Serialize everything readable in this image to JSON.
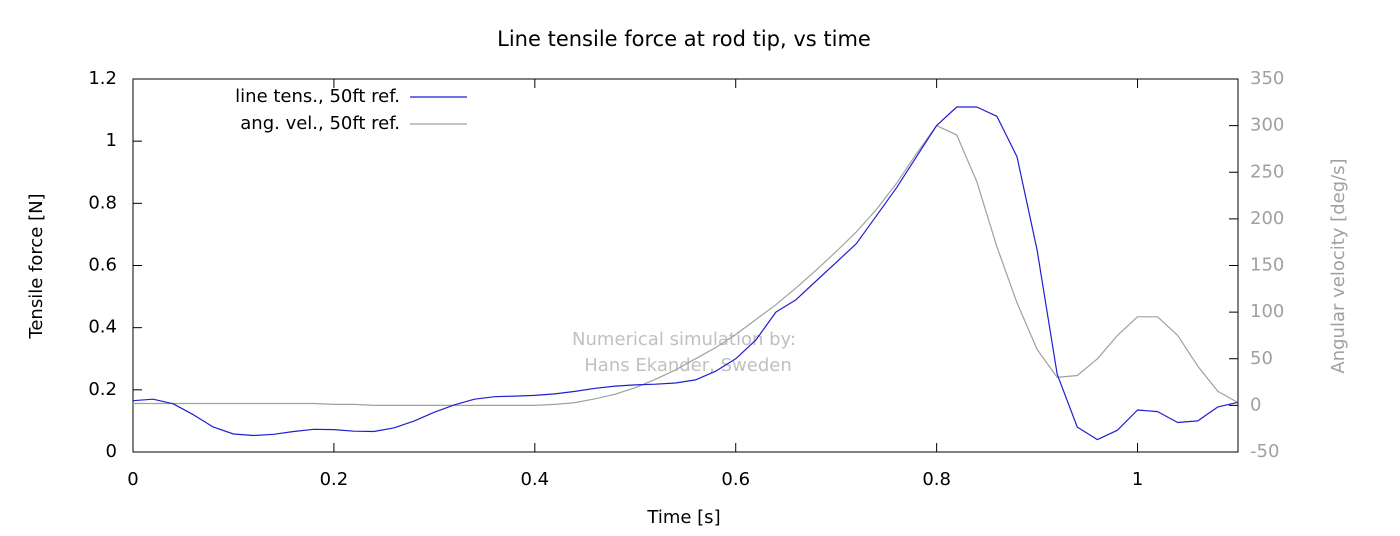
{
  "chart_data": {
    "type": "line",
    "title": "Line tensile force at rod tip, vs time",
    "x_label": "Time [s]",
    "y_label": "Tensile force [N]",
    "y2_label": "Angular velocity [deg/s]",
    "annotation": [
      "Numerical simulation by:",
      "Hans Ekander, Sweden"
    ],
    "legend": "upper left",
    "xlim": [
      0,
      1.1
    ],
    "xticks": [
      0,
      0.2,
      0.4,
      0.6,
      0.8,
      1
    ],
    "ylim": [
      0,
      1.2
    ],
    "yticks": [
      0,
      0.2,
      0.4,
      0.6,
      0.8,
      1,
      1.2
    ],
    "y2lim": [
      -50,
      350
    ],
    "y2ticks": [
      -50,
      0,
      50,
      100,
      150,
      200,
      250,
      300,
      350
    ],
    "x": [
      0,
      0.02,
      0.04,
      0.06,
      0.08,
      0.1,
      0.12,
      0.14,
      0.16,
      0.18,
      0.2,
      0.22,
      0.24,
      0.26,
      0.28,
      0.3,
      0.32,
      0.34,
      0.36,
      0.38,
      0.4,
      0.42,
      0.44,
      0.46,
      0.48,
      0.5,
      0.52,
      0.54,
      0.56,
      0.58,
      0.6,
      0.62,
      0.64,
      0.66,
      0.68,
      0.7,
      0.72,
      0.74,
      0.76,
      0.78,
      0.8,
      0.82,
      0.84,
      0.86,
      0.88,
      0.9,
      0.92,
      0.94,
      0.96,
      0.98,
      1,
      1.02,
      1.04,
      1.06,
      1.08,
      1.1
    ],
    "series": [
      {
        "name": "line tens., 50ft ref.",
        "color": "#1f1fd0",
        "values": [
          0.165,
          0.17,
          0.155,
          0.12,
          0.08,
          0.058,
          0.053,
          0.057,
          0.066,
          0.073,
          0.072,
          0.067,
          0.066,
          0.078,
          0.1,
          0.128,
          0.152,
          0.17,
          0.178,
          0.18,
          0.182,
          0.187,
          0.195,
          0.205,
          0.212,
          0.216,
          0.218,
          0.222,
          0.232,
          0.26,
          0.3,
          0.36,
          0.45,
          0.49,
          0.55,
          0.61,
          0.67,
          0.76,
          0.85,
          0.95,
          1.05,
          1.11,
          1.11,
          1.08,
          0.95,
          0.65,
          0.25,
          0.08,
          0.04,
          0.07,
          0.135,
          0.13,
          0.095,
          0.1,
          0.145,
          0.16
        ]
      },
      {
        "name": "ang. vel., 50ft ref.",
        "color": "#a0a0a0",
        "axis": "y2",
        "values": [
          2,
          2,
          2,
          2,
          2,
          2,
          2,
          2,
          2,
          2,
          1,
          1,
          0,
          0,
          0,
          0,
          0,
          0,
          0,
          0,
          0,
          1,
          3,
          7,
          12,
          19,
          28,
          38,
          50,
          62,
          76,
          92,
          108,
          126,
          145,
          165,
          186,
          210,
          238,
          270,
          300,
          290,
          240,
          170,
          110,
          60,
          30,
          32,
          50,
          75,
          95,
          95,
          75,
          42,
          15,
          3
        ]
      }
    ]
  }
}
